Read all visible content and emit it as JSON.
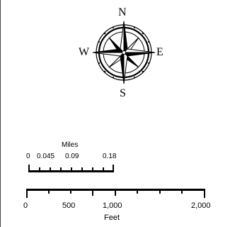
{
  "compass": {
    "north": "N",
    "east": "E",
    "south": "S",
    "west": "W"
  },
  "scale_miles": {
    "unit": "Miles",
    "labels": [
      "0",
      "0.045",
      "0.09",
      "0.18"
    ]
  },
  "scale_feet": {
    "unit": "Feet",
    "labels": [
      "0",
      "500",
      "1,000",
      "2,000"
    ]
  },
  "colors": {
    "ink": "#000000",
    "frame": "#444444"
  }
}
